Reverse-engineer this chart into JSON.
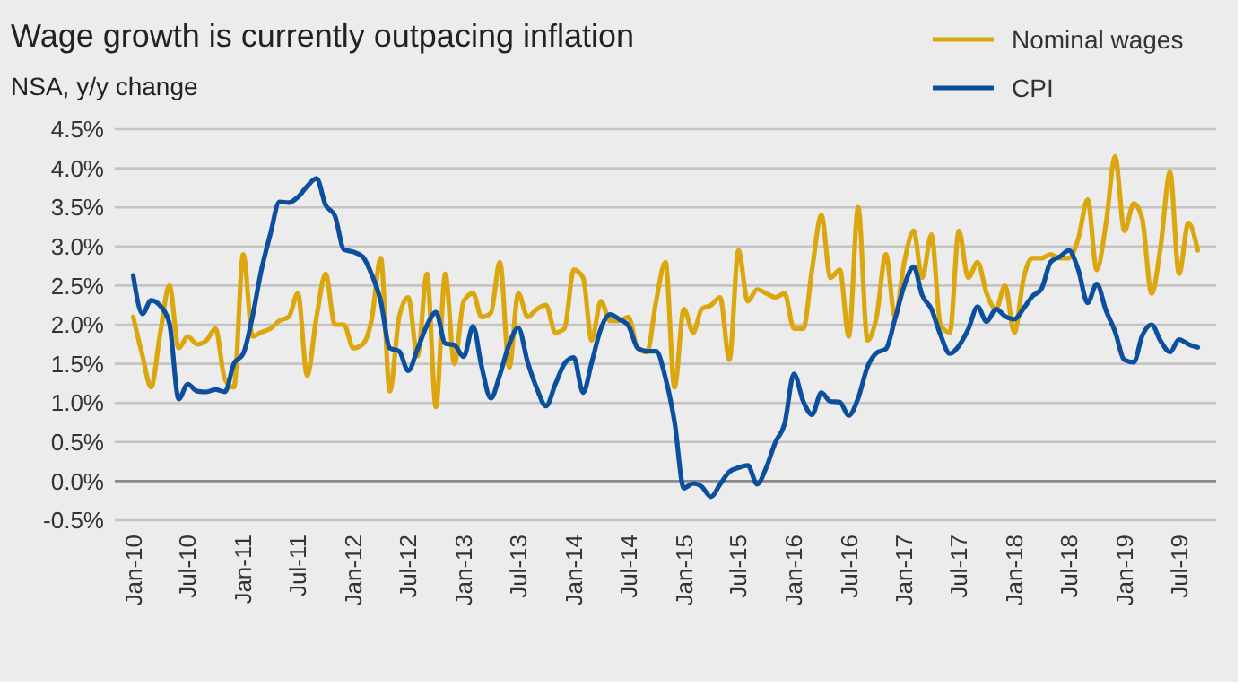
{
  "chart_data": {
    "type": "line",
    "title": "Wage growth is currently outpacing inflation",
    "subtitle": "NSA, y/y change",
    "x": [
      "2010-01",
      "2010-02",
      "2010-03",
      "2010-04",
      "2010-05",
      "2010-06",
      "2010-07",
      "2010-08",
      "2010-09",
      "2010-10",
      "2010-11",
      "2010-12",
      "2011-01",
      "2011-02",
      "2011-03",
      "2011-04",
      "2011-05",
      "2011-06",
      "2011-07",
      "2011-08",
      "2011-09",
      "2011-10",
      "2011-11",
      "2011-12",
      "2012-01",
      "2012-02",
      "2012-03",
      "2012-04",
      "2012-05",
      "2012-06",
      "2012-07",
      "2012-08",
      "2012-09",
      "2012-10",
      "2012-11",
      "2012-12",
      "2013-01",
      "2013-02",
      "2013-03",
      "2013-04",
      "2013-05",
      "2013-06",
      "2013-07",
      "2013-08",
      "2013-09",
      "2013-10",
      "2013-11",
      "2013-12",
      "2014-01",
      "2014-02",
      "2014-03",
      "2014-04",
      "2014-05",
      "2014-06",
      "2014-07",
      "2014-08",
      "2014-09",
      "2014-10",
      "2014-11",
      "2014-12",
      "2015-01",
      "2015-02",
      "2015-03",
      "2015-04",
      "2015-05",
      "2015-06",
      "2015-07",
      "2015-08",
      "2015-09",
      "2015-10",
      "2015-11",
      "2015-12",
      "2016-01",
      "2016-02",
      "2016-03",
      "2016-04",
      "2016-05",
      "2016-06",
      "2016-07",
      "2016-08",
      "2016-09",
      "2016-10",
      "2016-11",
      "2016-12",
      "2017-01",
      "2017-02",
      "2017-03",
      "2017-04",
      "2017-05",
      "2017-06",
      "2017-07",
      "2017-08",
      "2017-09",
      "2017-10",
      "2017-11",
      "2017-12",
      "2018-01",
      "2018-02",
      "2018-03",
      "2018-04",
      "2018-05",
      "2018-06",
      "2018-07",
      "2018-08",
      "2018-09",
      "2018-10",
      "2018-11",
      "2018-12",
      "2019-01",
      "2019-02",
      "2019-03",
      "2019-04",
      "2019-05",
      "2019-06",
      "2019-07",
      "2019-08",
      "2019-09"
    ],
    "series": [
      {
        "name": "Nominal wages",
        "color": "#dca70e",
        "values": [
          2.1,
          1.6,
          1.2,
          1.9,
          2.5,
          1.7,
          1.85,
          1.75,
          1.8,
          1.95,
          1.3,
          1.2,
          2.9,
          1.85,
          1.9,
          1.95,
          2.05,
          2.1,
          2.4,
          1.35,
          2.1,
          2.65,
          2.0,
          2.0,
          1.7,
          1.75,
          2.05,
          2.85,
          1.15,
          2.1,
          2.35,
          1.6,
          2.65,
          0.95,
          2.65,
          1.5,
          2.3,
          2.4,
          2.1,
          2.15,
          2.8,
          1.45,
          2.4,
          2.1,
          2.2,
          2.25,
          1.9,
          1.95,
          2.7,
          2.6,
          1.8,
          2.3,
          2.05,
          2.05,
          2.1,
          1.7,
          1.65,
          2.3,
          2.8,
          1.2,
          2.2,
          1.9,
          2.2,
          2.25,
          2.35,
          1.55,
          2.95,
          2.3,
          2.45,
          2.4,
          2.35,
          2.4,
          1.95,
          1.95,
          2.7,
          3.4,
          2.6,
          2.7,
          1.85,
          3.5,
          1.8,
          2.1,
          2.9,
          2.1,
          2.8,
          3.2,
          2.6,
          3.15,
          2.0,
          1.9,
          3.2,
          2.6,
          2.8,
          2.4,
          2.2,
          2.5,
          1.9,
          2.6,
          2.85,
          2.85,
          2.9,
          2.85,
          2.85,
          3.1,
          3.6,
          2.7,
          3.3,
          4.15,
          3.2,
          3.55,
          3.35,
          2.4,
          3.0,
          3.95,
          2.65,
          3.3,
          2.95
        ]
      },
      {
        "name": "CPI",
        "color": "#0c4f9e",
        "values": [
          2.63,
          2.14,
          2.31,
          2.24,
          2.02,
          1.05,
          1.24,
          1.15,
          1.14,
          1.17,
          1.14,
          1.5,
          1.63,
          2.11,
          2.68,
          3.16,
          3.57,
          3.56,
          3.63,
          3.77,
          3.87,
          3.53,
          3.39,
          2.96,
          2.93,
          2.87,
          2.65,
          2.3,
          1.7,
          1.66,
          1.41,
          1.69,
          1.99,
          2.16,
          1.76,
          1.74,
          1.59,
          1.98,
          1.47,
          1.06,
          1.36,
          1.75,
          1.96,
          1.52,
          1.18,
          0.96,
          1.24,
          1.5,
          1.58,
          1.13,
          1.51,
          1.95,
          2.13,
          2.07,
          1.99,
          1.7,
          1.66,
          1.66,
          1.32,
          0.76,
          -0.09,
          -0.03,
          -0.07,
          -0.2,
          -0.04,
          0.12,
          0.17,
          0.2,
          -0.04,
          0.17,
          0.5,
          0.73,
          1.37,
          1.02,
          0.85,
          1.13,
          1.02,
          1.01,
          0.84,
          1.06,
          1.46,
          1.64,
          1.69,
          2.07,
          2.5,
          2.74,
          2.38,
          2.2,
          1.87,
          1.63,
          1.73,
          1.94,
          2.23,
          2.04,
          2.2,
          2.11,
          2.07,
          2.21,
          2.36,
          2.46,
          2.8,
          2.87,
          2.95,
          2.7,
          2.28,
          2.52,
          2.18,
          1.91,
          1.55,
          1.52,
          1.86,
          2.0,
          1.79,
          1.65,
          1.81,
          1.75,
          1.71
        ]
      }
    ],
    "xlim": [
      "2009-11",
      "2019-11"
    ],
    "xticks": [
      {
        "value": "2010-01",
        "label": "Jan-10"
      },
      {
        "value": "2010-07",
        "label": "Jul-10"
      },
      {
        "value": "2011-01",
        "label": "Jan-11"
      },
      {
        "value": "2011-07",
        "label": "Jul-11"
      },
      {
        "value": "2012-01",
        "label": "Jan-12"
      },
      {
        "value": "2012-07",
        "label": "Jul-12"
      },
      {
        "value": "2013-01",
        "label": "Jan-13"
      },
      {
        "value": "2013-07",
        "label": "Jul-13"
      },
      {
        "value": "2014-01",
        "label": "Jan-14"
      },
      {
        "value": "2014-07",
        "label": "Jul-14"
      },
      {
        "value": "2015-01",
        "label": "Jan-15"
      },
      {
        "value": "2015-07",
        "label": "Jul-15"
      },
      {
        "value": "2016-01",
        "label": "Jan-16"
      },
      {
        "value": "2016-07",
        "label": "Jul-16"
      },
      {
        "value": "2017-01",
        "label": "Jan-17"
      },
      {
        "value": "2017-07",
        "label": "Jul-17"
      },
      {
        "value": "2018-01",
        "label": "Jan-18"
      },
      {
        "value": "2018-07",
        "label": "Jul-18"
      },
      {
        "value": "2019-01",
        "label": "Jan-19"
      },
      {
        "value": "2019-07",
        "label": "Jul-19"
      }
    ],
    "ylim": [
      -0.5,
      4.5
    ],
    "yticks": [
      {
        "value": -0.5,
        "label": "-0.5%"
      },
      {
        "value": 0,
        "label": "0.0%"
      },
      {
        "value": 0.5,
        "label": "0.5%"
      },
      {
        "value": 1,
        "label": "1.0%"
      },
      {
        "value": 1.5,
        "label": "1.5%"
      },
      {
        "value": 2,
        "label": "2.0%"
      },
      {
        "value": 2.5,
        "label": "2.5%"
      },
      {
        "value": 3,
        "label": "3.0%"
      },
      {
        "value": 3.5,
        "label": "3.5%"
      },
      {
        "value": 4,
        "label": "4.0%"
      },
      {
        "value": 4.5,
        "label": "4.5%"
      }
    ],
    "grid": "y",
    "legend": "top right",
    "marker": "none",
    "line_style": "solid"
  }
}
